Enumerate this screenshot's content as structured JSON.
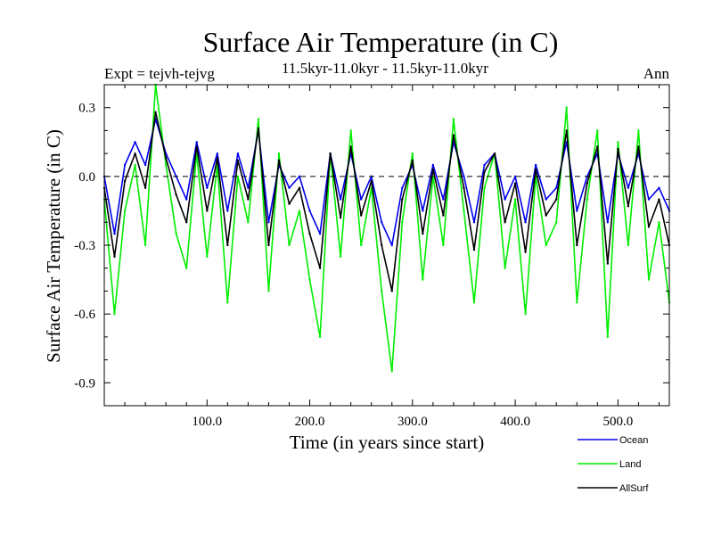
{
  "chart_data": {
    "type": "line",
    "title": "Surface Air Temperature (in C)",
    "subtitle": "11.5kyr-11.0kyr - 11.5kyr-11.0kyr",
    "left_label": "Expt = tejvh-tejvg",
    "right_label": "Ann",
    "xlabel": "Time (in years since start)",
    "ylabel": "Surface Air Temperature (in C)",
    "xlim": [
      0,
      550
    ],
    "ylim": [
      -1.0,
      0.4
    ],
    "xticks": [
      100,
      200,
      300,
      400,
      500
    ],
    "xtick_labels": [
      "100.0",
      "200.0",
      "300.0",
      "400.0",
      "500.0"
    ],
    "yticks": [
      0.3,
      0.0,
      -0.3,
      -0.6,
      -0.9
    ],
    "ytick_labels": [
      "0.3",
      "0.0",
      "-0.3",
      "-0.6",
      "-0.9"
    ],
    "zero_line": "dashed",
    "x": [
      0,
      10,
      20,
      30,
      40,
      50,
      60,
      70,
      80,
      90,
      100,
      110,
      120,
      130,
      140,
      150,
      160,
      170,
      180,
      190,
      200,
      210,
      220,
      230,
      240,
      250,
      260,
      270,
      280,
      290,
      300,
      310,
      320,
      330,
      340,
      350,
      360,
      370,
      380,
      390,
      400,
      410,
      420,
      430,
      440,
      450,
      460,
      470,
      480,
      490,
      500,
      510,
      520,
      530,
      540,
      550
    ],
    "series": [
      {
        "name": "Land",
        "color": "#00ee00",
        "values": [
          -0.1,
          -0.6,
          -0.15,
          0.05,
          -0.3,
          0.4,
          0.05,
          -0.25,
          -0.4,
          0.1,
          -0.35,
          0.05,
          -0.55,
          0.0,
          -0.2,
          0.25,
          -0.5,
          0.1,
          -0.3,
          -0.15,
          -0.45,
          -0.7,
          0.1,
          -0.35,
          0.2,
          -0.3,
          -0.05,
          -0.5,
          -0.85,
          -0.2,
          0.1,
          -0.45,
          0.0,
          -0.3,
          0.25,
          -0.15,
          -0.55,
          -0.05,
          0.1,
          -0.4,
          -0.1,
          -0.6,
          0.0,
          -0.3,
          -0.2,
          0.3,
          -0.55,
          -0.1,
          0.2,
          -0.7,
          0.15,
          -0.3,
          0.2,
          -0.45,
          -0.2,
          -0.55
        ]
      },
      {
        "name": "Ocean",
        "color": "#0000ee",
        "values": [
          0.0,
          -0.25,
          0.05,
          0.15,
          0.05,
          0.25,
          0.1,
          0.0,
          -0.1,
          0.15,
          -0.05,
          0.1,
          -0.15,
          0.1,
          -0.05,
          0.2,
          -0.2,
          0.05,
          -0.05,
          0.0,
          -0.15,
          -0.25,
          0.1,
          -0.1,
          0.1,
          -0.1,
          0.0,
          -0.2,
          -0.3,
          -0.05,
          0.05,
          -0.15,
          0.05,
          -0.1,
          0.15,
          0.0,
          -0.2,
          0.05,
          0.1,
          -0.1,
          0.0,
          -0.2,
          0.05,
          -0.1,
          -0.05,
          0.15,
          -0.15,
          0.0,
          0.1,
          -0.2,
          0.1,
          -0.05,
          0.1,
          -0.1,
          -0.05,
          -0.15
        ]
      },
      {
        "name": "AllSurf",
        "color": "#000000",
        "values": [
          -0.05,
          -0.35,
          -0.02,
          0.1,
          -0.05,
          0.28,
          0.08,
          -0.08,
          -0.2,
          0.13,
          -0.15,
          0.08,
          -0.3,
          0.07,
          -0.1,
          0.21,
          -0.3,
          0.07,
          -0.12,
          -0.05,
          -0.25,
          -0.4,
          0.1,
          -0.18,
          0.13,
          -0.17,
          -0.02,
          -0.3,
          -0.5,
          -0.1,
          0.07,
          -0.25,
          0.03,
          -0.17,
          0.18,
          -0.05,
          -0.32,
          0.02,
          0.1,
          -0.2,
          -0.03,
          -0.33,
          0.03,
          -0.17,
          -0.1,
          0.2,
          -0.3,
          -0.03,
          0.13,
          -0.38,
          0.12,
          -0.13,
          0.13,
          -0.22,
          -0.1,
          -0.3
        ]
      }
    ],
    "legend": [
      "Ocean",
      "Land",
      "AllSurf"
    ],
    "legend_position": "bottom-right"
  }
}
